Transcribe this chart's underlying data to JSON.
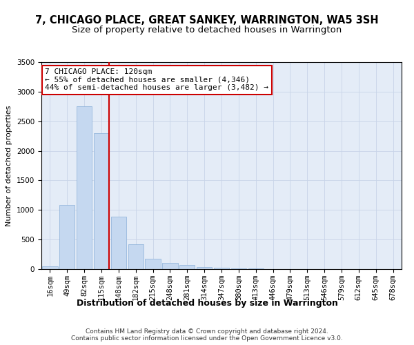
{
  "title": "7, CHICAGO PLACE, GREAT SANKEY, WARRINGTON, WA5 3SH",
  "subtitle": "Size of property relative to detached houses in Warrington",
  "xlabel": "Distribution of detached houses by size in Warrington",
  "ylabel": "Number of detached properties",
  "categories": [
    "16sqm",
    "49sqm",
    "82sqm",
    "115sqm",
    "148sqm",
    "182sqm",
    "215sqm",
    "248sqm",
    "281sqm",
    "314sqm",
    "347sqm",
    "380sqm",
    "413sqm",
    "446sqm",
    "479sqm",
    "513sqm",
    "546sqm",
    "579sqm",
    "612sqm",
    "645sqm",
    "678sqm"
  ],
  "values": [
    50,
    1090,
    2750,
    2300,
    890,
    420,
    175,
    100,
    65,
    40,
    20,
    10,
    6,
    4,
    3,
    2,
    2,
    1,
    1,
    1,
    1
  ],
  "bar_color": "#c5d8f0",
  "bar_edge_color": "#8ab0d8",
  "grid_color": "#c8d4e8",
  "background_color": "#e4ecf7",
  "vline_color": "#cc0000",
  "vline_x": 3.45,
  "annotation_text": "7 CHICAGO PLACE: 120sqm\n← 55% of detached houses are smaller (4,346)\n44% of semi-detached houses are larger (3,482) →",
  "annotation_box_facecolor": "#ffffff",
  "annotation_box_edgecolor": "#cc0000",
  "footer": "Contains HM Land Registry data © Crown copyright and database right 2024.\nContains public sector information licensed under the Open Government Licence v3.0.",
  "ylim": [
    0,
    3500
  ],
  "title_fontsize": 10.5,
  "subtitle_fontsize": 9.5,
  "xlabel_fontsize": 9,
  "ylabel_fontsize": 8,
  "tick_fontsize": 7.5,
  "annotation_fontsize": 8,
  "footer_fontsize": 6.5
}
